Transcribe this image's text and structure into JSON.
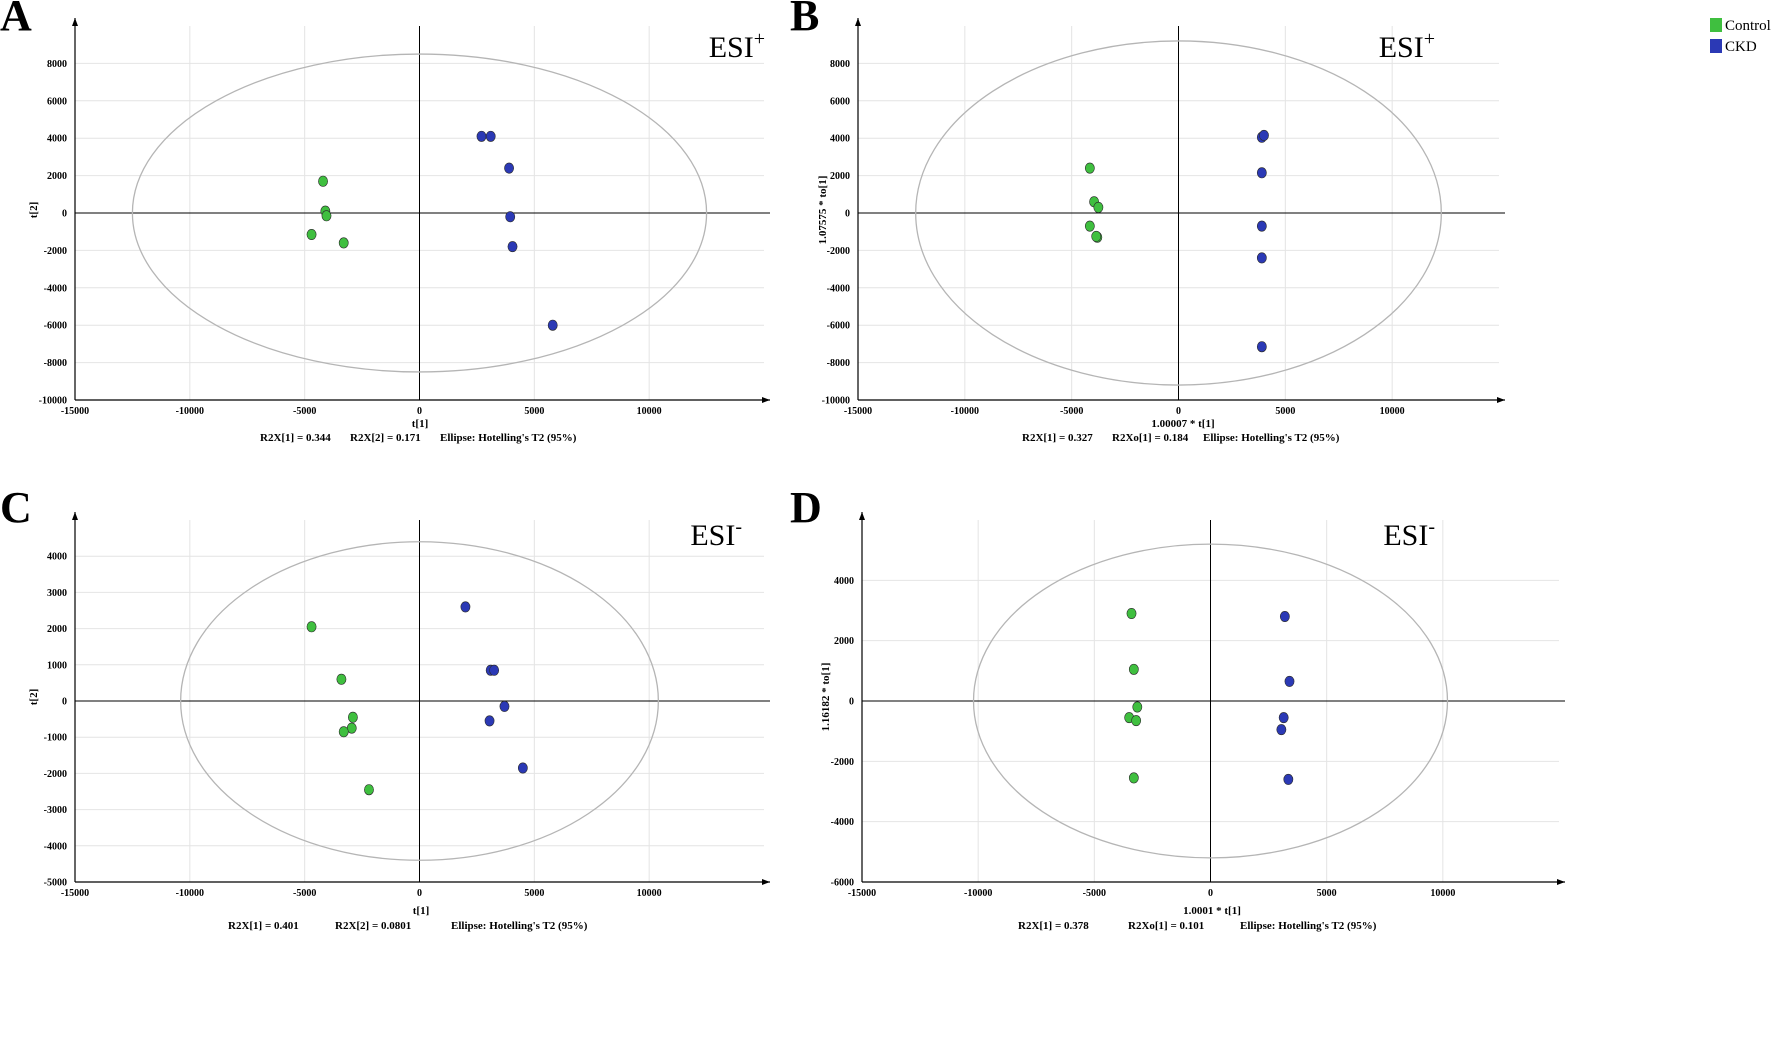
{
  "legend": [
    {
      "label": "Control",
      "color": "#3fbf3f"
    },
    {
      "label": "CKD",
      "color": "#2b39b5"
    }
  ],
  "chart_data": [
    {
      "type": "scatter",
      "panel": "A",
      "title": "ESI",
      "title_sup": "+",
      "xlabel": "t[1]",
      "ylabel": "t[2]",
      "xlim": [
        -15000,
        15000
      ],
      "ylim": [
        -10000,
        10000
      ],
      "xticks": [
        -15000,
        -10000,
        -5000,
        0,
        5000,
        10000
      ],
      "yticks": [
        -10000,
        -8000,
        -6000,
        -4000,
        -2000,
        0,
        2000,
        4000,
        6000,
        8000
      ],
      "ellipse": {
        "rx": 12500,
        "ry": 8500
      },
      "stats": [
        "R2X[1] = 0.344",
        "R2X[2] = 0.171",
        "Ellipse: Hotelling's T2 (95%)"
      ],
      "series": [
        {
          "name": "Control",
          "points": [
            [
              -4200,
              1700
            ],
            [
              -4100,
              100
            ],
            [
              -4050,
              -150
            ],
            [
              -4700,
              -1150
            ],
            [
              -3300,
              -1600
            ]
          ]
        },
        {
          "name": "CKD",
          "points": [
            [
              2700,
              4100
            ],
            [
              3100,
              4100
            ],
            [
              3900,
              2400
            ],
            [
              3950,
              -200
            ],
            [
              4050,
              -1800
            ],
            [
              5800,
              -6000
            ]
          ]
        }
      ]
    },
    {
      "type": "scatter",
      "panel": "B",
      "title": "ESI",
      "title_sup": "+",
      "xlabel": "1.00007 * t[1]",
      "ylabel": "1.07575 * to[1]",
      "xlim": [
        -15000,
        15000
      ],
      "ylim": [
        -10000,
        10000
      ],
      "xticks": [
        -15000,
        -10000,
        -5000,
        0,
        5000,
        10000
      ],
      "yticks": [
        -10000,
        -8000,
        -6000,
        -4000,
        -2000,
        0,
        2000,
        4000,
        6000,
        8000
      ],
      "ellipse": {
        "rx": 12300,
        "ry": 9200
      },
      "stats": [
        "R2X[1] = 0.327",
        "R2Xo[1] = 0.184",
        "Ellipse: Hotelling's T2 (95%)"
      ],
      "series": [
        {
          "name": "Control",
          "points": [
            [
              -4150,
              2400
            ],
            [
              -3950,
              600
            ],
            [
              -3750,
              300
            ],
            [
              -4150,
              -700
            ],
            [
              -3800,
              -1300
            ],
            [
              -3850,
              -1250
            ]
          ]
        },
        {
          "name": "CKD",
          "points": [
            [
              3900,
              4050
            ],
            [
              4000,
              4150
            ],
            [
              3900,
              2150
            ],
            [
              3900,
              -700
            ],
            [
              3900,
              -2400
            ],
            [
              3900,
              -7150
            ]
          ]
        }
      ]
    },
    {
      "type": "scatter",
      "panel": "C",
      "title": "ESI",
      "title_sup": "-",
      "xlabel": "t[1]",
      "ylabel": "t[2]",
      "xlim": [
        -15000,
        15000
      ],
      "ylim": [
        -5000,
        5000
      ],
      "xticks": [
        -15000,
        -10000,
        -5000,
        0,
        5000,
        10000
      ],
      "yticks": [
        -5000,
        -4000,
        -3000,
        -2000,
        -1000,
        0,
        1000,
        2000,
        3000,
        4000
      ],
      "ellipse": {
        "rx": 10400,
        "ry": 4400
      },
      "stats": [
        "R2X[1] = 0.401",
        "R2X[2] = 0.0801",
        "Ellipse: Hotelling's T2 (95%)"
      ],
      "series": [
        {
          "name": "Control",
          "points": [
            [
              -4700,
              2050
            ],
            [
              -3400,
              600
            ],
            [
              -2900,
              -450
            ],
            [
              -2950,
              -750
            ],
            [
              -3300,
              -850
            ],
            [
              -2200,
              -2450
            ]
          ]
        },
        {
          "name": "CKD",
          "points": [
            [
              2000,
              2600
            ],
            [
              3100,
              850
            ],
            [
              3250,
              850
            ],
            [
              3700,
              -150
            ],
            [
              3050,
              -550
            ],
            [
              4500,
              -1850
            ]
          ]
        }
      ]
    },
    {
      "type": "scatter",
      "panel": "D",
      "title": "ESI",
      "title_sup": "-",
      "xlabel": "1.0001 * t[1]",
      "ylabel": "1.16182 * to[1]",
      "xlim": [
        -15000,
        15000
      ],
      "ylim": [
        -6000,
        6000
      ],
      "xticks": [
        -15000,
        -10000,
        -5000,
        0,
        5000,
        10000
      ],
      "yticks": [
        -6000,
        -4000,
        -2000,
        0,
        2000,
        4000
      ],
      "ellipse": {
        "rx": 10200,
        "ry": 5200
      },
      "stats": [
        "R2X[1] = 0.378",
        "R2Xo[1] = 0.101",
        "Ellipse: Hotelling's T2 (95%)"
      ],
      "series": [
        {
          "name": "Control",
          "points": [
            [
              -3400,
              2900
            ],
            [
              -3300,
              1050
            ],
            [
              -3150,
              -200
            ],
            [
              -3500,
              -550
            ],
            [
              -3200,
              -650
            ],
            [
              -3300,
              -2550
            ]
          ]
        },
        {
          "name": "CKD",
          "points": [
            [
              3200,
              2800
            ],
            [
              3400,
              650
            ],
            [
              3150,
              -550
            ],
            [
              3050,
              -950
            ],
            [
              3350,
              -2600
            ]
          ]
        }
      ]
    }
  ]
}
